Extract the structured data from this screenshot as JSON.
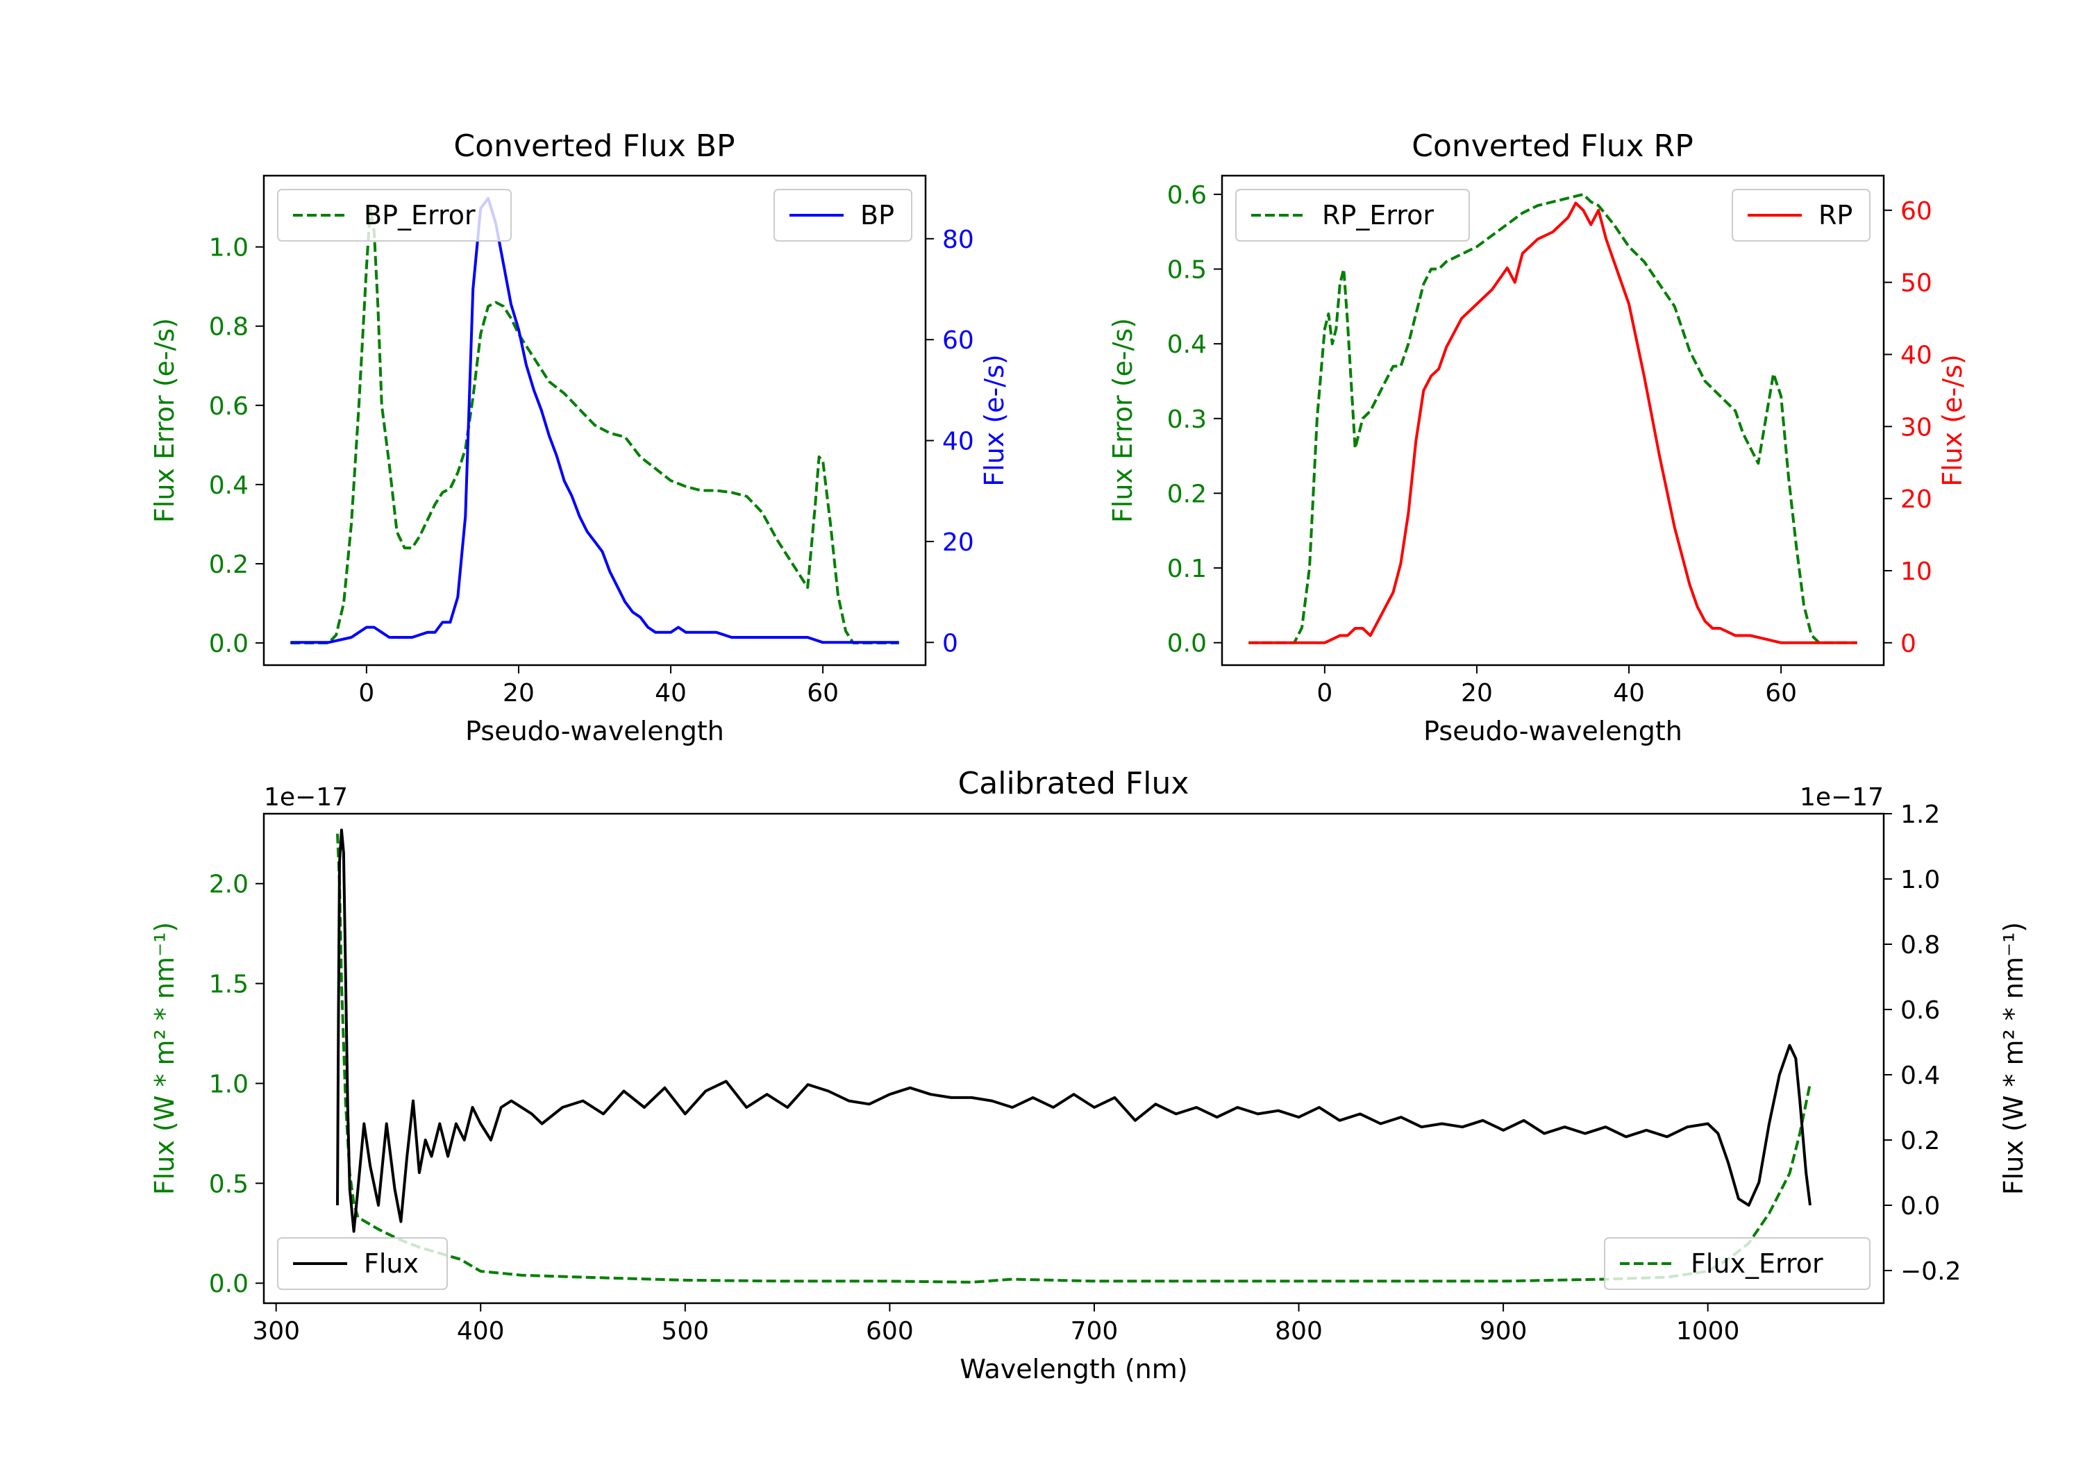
{
  "colors": {
    "error": "#007f00",
    "bp": "#0000ff",
    "rp": "#ff0000",
    "flux": "#000000"
  },
  "chart_data": [
    {
      "type": "line",
      "title": "Converted Flux BP",
      "xlabel": "Pseudo-wavelength",
      "ylabel_left": "Flux Error (e-/s)",
      "ylabel_right": "Flux (e-/s)",
      "xlim": [
        -13.5,
        73.5
      ],
      "ylim_left": [
        -0.056,
        1.18
      ],
      "ylim_right": [
        -4.5,
        92.5
      ],
      "xticks": [
        0,
        20,
        40,
        60
      ],
      "xtick_labels": [
        "0",
        "20",
        "40",
        "60"
      ],
      "yticks_left": [
        0,
        0.2,
        0.4,
        0.6,
        0.8,
        1.0
      ],
      "ytick_labels_left": [
        "0.0",
        "0.2",
        "0.4",
        "0.6",
        "0.8",
        "1.0"
      ],
      "yticks_right": [
        0,
        20,
        40,
        60,
        80
      ],
      "ytick_labels_right": [
        "0",
        "20",
        "40",
        "60",
        "80"
      ],
      "series": [
        {
          "name": "BP_Error",
          "axis": "left",
          "style": "dashed",
          "color": "#007f00",
          "x": [
            -10,
            -5,
            -4,
            -3,
            -2,
            -1,
            0,
            0.5,
            1,
            1.5,
            2,
            3,
            4,
            5,
            6,
            7,
            8,
            9,
            10,
            11,
            12,
            13,
            14,
            15,
            16,
            17,
            18,
            19,
            20,
            22,
            24,
            26,
            28,
            30,
            32,
            34,
            36,
            38,
            40,
            42,
            44,
            46,
            48,
            50,
            52,
            54,
            56,
            57,
            58,
            59,
            59.5,
            60,
            61,
            62,
            63,
            64,
            65,
            66,
            68,
            70
          ],
          "y": [
            0.0,
            0.0,
            0.02,
            0.1,
            0.3,
            0.6,
            0.95,
            1.1,
            1.04,
            0.85,
            0.6,
            0.45,
            0.28,
            0.24,
            0.24,
            0.27,
            0.31,
            0.35,
            0.38,
            0.39,
            0.43,
            0.49,
            0.62,
            0.78,
            0.85,
            0.86,
            0.85,
            0.82,
            0.78,
            0.72,
            0.66,
            0.63,
            0.59,
            0.55,
            0.53,
            0.52,
            0.47,
            0.44,
            0.41,
            0.395,
            0.385,
            0.385,
            0.38,
            0.37,
            0.33,
            0.26,
            0.2,
            0.17,
            0.14,
            0.35,
            0.47,
            0.46,
            0.3,
            0.12,
            0.03,
            0.0,
            0.0,
            0.0,
            0.0,
            0.0
          ]
        },
        {
          "name": "BP",
          "axis": "right",
          "style": "solid",
          "color": "#0000ff",
          "x": [
            -10,
            -5,
            -2,
            0,
            1,
            2,
            3,
            4,
            5,
            6,
            7,
            8,
            9,
            10,
            11,
            12,
            13,
            14,
            15,
            16,
            17,
            18,
            19,
            20,
            21,
            22,
            23,
            24,
            25,
            26,
            27,
            28,
            29,
            30,
            31,
            32,
            33,
            34,
            35,
            36,
            37,
            38,
            39,
            40,
            41,
            42,
            43,
            44,
            46,
            48,
            50,
            52,
            54,
            56,
            58,
            60,
            62,
            64,
            66,
            68,
            70
          ],
          "y": [
            0,
            0,
            1,
            3,
            3,
            2,
            1,
            1,
            1,
            1,
            1.5,
            2,
            2,
            4,
            4,
            9,
            25,
            70,
            86,
            88,
            83,
            75,
            67,
            62,
            55,
            50,
            46,
            41,
            37,
            32,
            29,
            25,
            22,
            20,
            18,
            14,
            11,
            8,
            6,
            5,
            3,
            2,
            2,
            2,
            3,
            2,
            2,
            2,
            2,
            1,
            1,
            1,
            1,
            1,
            1,
            0,
            0,
            0,
            0,
            0,
            0
          ]
        }
      ],
      "legends": [
        {
          "label": "BP_Error",
          "position": "upper left"
        },
        {
          "label": "BP",
          "position": "upper right"
        }
      ]
    },
    {
      "type": "line",
      "title": "Converted Flux RP",
      "xlabel": "Pseudo-wavelength",
      "ylabel_left": "Flux Error (e-/s)",
      "ylabel_right": "Flux (e-/s)",
      "xlim": [
        -13.5,
        73.5
      ],
      "ylim_left": [
        -0.03,
        0.625
      ],
      "ylim_right": [
        -3.1,
        64.8
      ],
      "xticks": [
        0,
        20,
        40,
        60
      ],
      "xtick_labels": [
        "0",
        "20",
        "40",
        "60"
      ],
      "yticks_left": [
        0,
        0.1,
        0.2,
        0.3,
        0.4,
        0.5,
        0.6
      ],
      "ytick_labels_left": [
        "0.0",
        "0.1",
        "0.2",
        "0.3",
        "0.4",
        "0.5",
        "0.6"
      ],
      "yticks_right": [
        0,
        10,
        20,
        30,
        40,
        50,
        60
      ],
      "ytick_labels_right": [
        "0",
        "10",
        "20",
        "30",
        "40",
        "50",
        "60"
      ],
      "series": [
        {
          "name": "RP_Error",
          "axis": "left",
          "style": "dashed",
          "color": "#007f00",
          "x": [
            -10,
            -5,
            -4,
            -3,
            -2,
            -1,
            0,
            0.5,
            1,
            1.5,
            2,
            2.5,
            3,
            4,
            5,
            6,
            7,
            8,
            9,
            10,
            11,
            12,
            13,
            14,
            15,
            16,
            18,
            20,
            22,
            24,
            26,
            28,
            30,
            32,
            34,
            35,
            36,
            38,
            40,
            42,
            44,
            46,
            48,
            50,
            52,
            54,
            55,
            56,
            57,
            58,
            59,
            60,
            61,
            62,
            63,
            64,
            65,
            66,
            68,
            70
          ],
          "y": [
            0.0,
            0.0,
            0.0,
            0.02,
            0.1,
            0.3,
            0.42,
            0.44,
            0.4,
            0.42,
            0.48,
            0.5,
            0.43,
            0.26,
            0.3,
            0.31,
            0.33,
            0.35,
            0.37,
            0.37,
            0.4,
            0.44,
            0.48,
            0.5,
            0.5,
            0.51,
            0.52,
            0.53,
            0.545,
            0.56,
            0.575,
            0.585,
            0.59,
            0.595,
            0.6,
            0.59,
            0.585,
            0.56,
            0.53,
            0.51,
            0.48,
            0.45,
            0.39,
            0.35,
            0.33,
            0.31,
            0.28,
            0.26,
            0.24,
            0.3,
            0.36,
            0.33,
            0.22,
            0.13,
            0.05,
            0.01,
            0.0,
            0.0,
            0.0,
            0.0
          ]
        },
        {
          "name": "RP",
          "axis": "right",
          "style": "solid",
          "color": "#ff0000",
          "x": [
            -10,
            -5,
            -2,
            0,
            2,
            3,
            4,
            5,
            6,
            7,
            8,
            9,
            10,
            11,
            12,
            13,
            14,
            15,
            16,
            17,
            18,
            20,
            22,
            24,
            25,
            26,
            27,
            28,
            30,
            32,
            33,
            34,
            35,
            36,
            37,
            38,
            40,
            42,
            44,
            46,
            48,
            49,
            50,
            51,
            52,
            54,
            56,
            58,
            60,
            62,
            64,
            66,
            68,
            70
          ],
          "y": [
            0,
            0,
            0,
            0,
            1,
            1,
            2,
            2,
            1,
            3,
            5,
            7,
            11,
            18,
            28,
            35,
            37,
            38,
            41,
            43,
            45,
            47,
            49,
            52,
            50,
            54,
            55,
            56,
            57,
            59,
            61,
            60,
            58,
            60,
            56,
            53,
            47,
            37,
            26,
            16,
            8,
            5,
            3,
            2,
            2,
            1,
            1,
            0.5,
            0,
            0,
            0,
            0,
            0,
            0
          ]
        }
      ],
      "legends": [
        {
          "label": "RP_Error",
          "position": "upper left"
        },
        {
          "label": "RP",
          "position": "upper right"
        }
      ]
    },
    {
      "type": "line",
      "title": "Calibrated Flux",
      "xlabel": "Wavelength (nm)",
      "ylabel_left": "Flux (W * m² * nm⁻¹)",
      "ylabel_right": "Flux (W * m² * nm⁻¹)",
      "offset_left": "1e−17",
      "offset_right": "1e−17",
      "xlim": [
        294,
        1086
      ],
      "ylim_left": [
        -0.1,
        2.35
      ],
      "ylim_right": [
        -0.3,
        1.2
      ],
      "xticks": [
        300,
        400,
        500,
        600,
        700,
        800,
        900,
        1000
      ],
      "xtick_labels": [
        "300",
        "400",
        "500",
        "600",
        "700",
        "800",
        "900",
        "1000"
      ],
      "yticks_left": [
        0,
        0.5,
        1.0,
        1.5,
        2.0
      ],
      "ytick_labels_left": [
        "0.0",
        "0.5",
        "1.0",
        "1.5",
        "2.0"
      ],
      "yticks_right": [
        -0.2,
        0,
        0.2,
        0.4,
        0.6,
        0.8,
        1.0,
        1.2
      ],
      "ytick_labels_right": [
        "−0.2",
        "0.0",
        "0.2",
        "0.4",
        "0.6",
        "0.8",
        "1.0",
        "1.2"
      ],
      "series": [
        {
          "name": "Flux_Error",
          "axis": "left",
          "style": "dashed",
          "color": "#007f00",
          "x": [
            330,
            331,
            332,
            334,
            336,
            338,
            340,
            345,
            350,
            360,
            370,
            380,
            390,
            400,
            420,
            450,
            500,
            550,
            600,
            640,
            660,
            700,
            750,
            800,
            850,
            900,
            950,
            980,
            1000,
            1010,
            1020,
            1030,
            1040,
            1045,
            1050
          ],
          "y": [
            2.25,
            2.0,
            1.5,
            0.9,
            0.55,
            0.4,
            0.33,
            0.3,
            0.27,
            0.22,
            0.18,
            0.15,
            0.12,
            0.06,
            0.04,
            0.03,
            0.015,
            0.01,
            0.01,
            0.005,
            0.02,
            0.01,
            0.01,
            0.01,
            0.01,
            0.01,
            0.02,
            0.03,
            0.06,
            0.12,
            0.2,
            0.35,
            0.55,
            0.75,
            1.0
          ]
        },
        {
          "name": "Flux",
          "axis": "right",
          "style": "solid",
          "color": "#000000",
          "x": [
            330,
            330.5,
            331,
            332,
            333,
            334,
            335,
            336,
            338,
            340,
            343,
            346,
            350,
            354,
            358,
            361,
            364,
            367,
            370,
            373,
            376,
            380,
            384,
            388,
            392,
            396,
            400,
            405,
            410,
            415,
            420,
            425,
            430,
            440,
            450,
            460,
            470,
            480,
            490,
            500,
            510,
            520,
            530,
            540,
            550,
            560,
            570,
            580,
            590,
            600,
            610,
            620,
            630,
            640,
            650,
            660,
            670,
            680,
            690,
            700,
            710,
            720,
            730,
            740,
            750,
            760,
            770,
            780,
            790,
            800,
            810,
            820,
            830,
            840,
            850,
            860,
            870,
            880,
            890,
            900,
            910,
            920,
            930,
            940,
            950,
            960,
            970,
            980,
            990,
            1000,
            1005,
            1010,
            1015,
            1020,
            1025,
            1030,
            1035,
            1040,
            1043,
            1045,
            1048,
            1050
          ],
          "y": [
            0.0,
            0.6,
            1.05,
            1.15,
            1.08,
            0.7,
            0.3,
            0.05,
            -0.08,
            0.05,
            0.25,
            0.12,
            0.0,
            0.25,
            0.05,
            -0.05,
            0.15,
            0.32,
            0.1,
            0.2,
            0.15,
            0.25,
            0.15,
            0.25,
            0.2,
            0.3,
            0.25,
            0.2,
            0.3,
            0.32,
            0.3,
            0.28,
            0.25,
            0.3,
            0.32,
            0.28,
            0.35,
            0.3,
            0.36,
            0.28,
            0.35,
            0.38,
            0.3,
            0.34,
            0.3,
            0.37,
            0.35,
            0.32,
            0.31,
            0.34,
            0.36,
            0.34,
            0.33,
            0.33,
            0.32,
            0.3,
            0.33,
            0.3,
            0.34,
            0.3,
            0.33,
            0.26,
            0.31,
            0.28,
            0.3,
            0.27,
            0.3,
            0.28,
            0.29,
            0.27,
            0.3,
            0.26,
            0.28,
            0.25,
            0.27,
            0.24,
            0.25,
            0.24,
            0.26,
            0.23,
            0.26,
            0.22,
            0.24,
            0.22,
            0.24,
            0.21,
            0.23,
            0.21,
            0.24,
            0.25,
            0.22,
            0.13,
            0.02,
            0.0,
            0.07,
            0.25,
            0.4,
            0.49,
            0.45,
            0.32,
            0.1,
            0.0
          ]
        }
      ],
      "legends": [
        {
          "label": "Flux",
          "position": "lower left"
        },
        {
          "label": "Flux_Error",
          "position": "lower right"
        }
      ]
    }
  ]
}
